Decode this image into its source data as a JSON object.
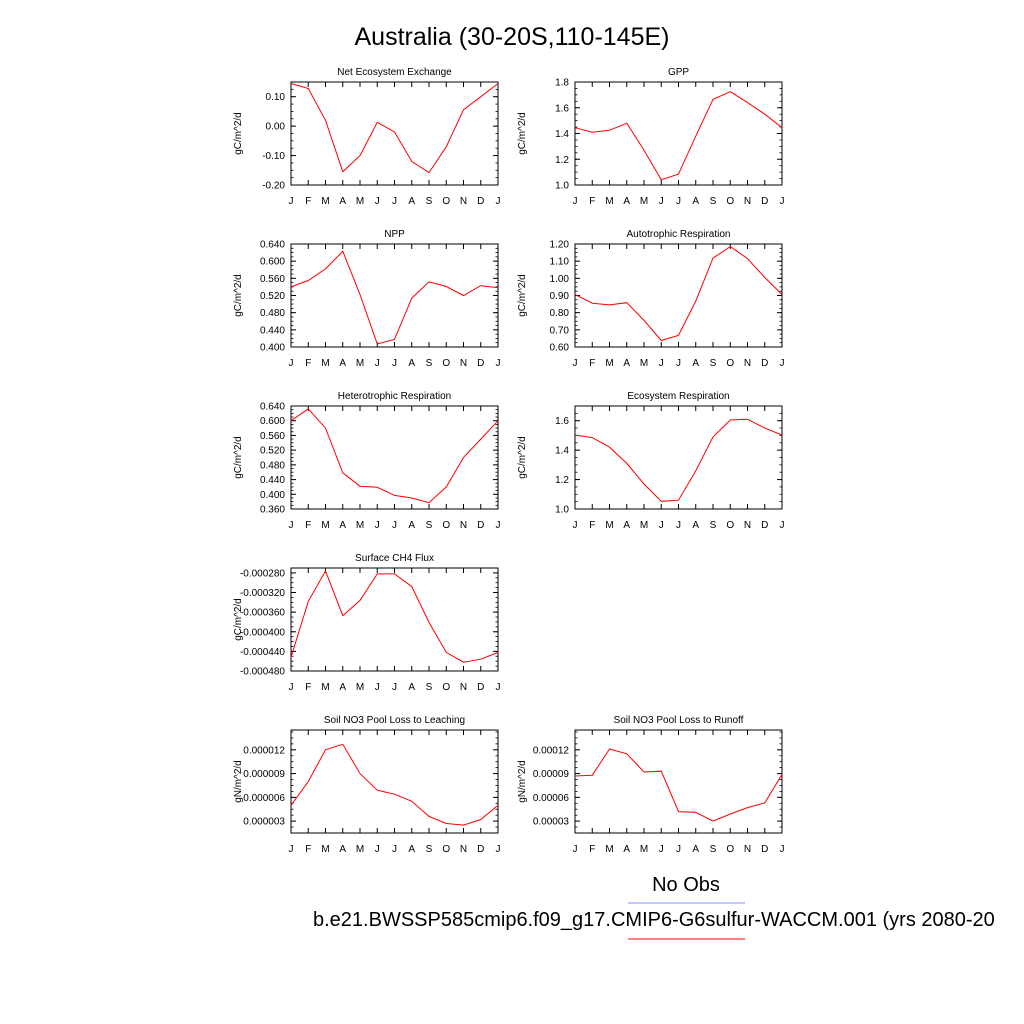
{
  "figure": {
    "title": "Australia (30-20S,110-145E)",
    "legend": {
      "obs_label": "No Obs",
      "obs_color": "#8888ff",
      "case_label": "b.e21.BWSSP585cmip6.f09_g17.CMIP6-G6sulfur-WACCM.001 (yrs 2080-20",
      "case_color": "#ff0000"
    }
  },
  "chart_data": [
    {
      "type": "line",
      "title": "Net Ecosystem Exchange",
      "ylabel": "gC/m^2/d",
      "xlabel": "",
      "categories": [
        "J",
        "F",
        "M",
        "A",
        "M",
        "J",
        "J",
        "A",
        "S",
        "O",
        "N",
        "D",
        "J"
      ],
      "series": [
        {
          "color": "#ff0000",
          "values": [
            0.145,
            0.128,
            0.02,
            -0.155,
            -0.1,
            0.013,
            -0.02,
            -0.12,
            -0.158,
            -0.07,
            0.056,
            0.1,
            0.145
          ]
        }
      ],
      "ylim": [
        -0.2,
        0.15
      ],
      "yticks": [
        -0.2,
        -0.1,
        0.0,
        0.1
      ],
      "yticklabels": [
        "-0.20",
        "-0.10",
        "0.00",
        "0.10"
      ],
      "grid": false
    },
    {
      "type": "line",
      "title": "GPP",
      "ylabel": "gC/m^2/d",
      "xlabel": "",
      "categories": [
        "J",
        "F",
        "M",
        "A",
        "M",
        "J",
        "J",
        "A",
        "S",
        "O",
        "N",
        "D",
        "J"
      ],
      "series": [
        {
          "color": "#ff0000",
          "values": [
            1.445,
            1.41,
            1.425,
            1.48,
            1.27,
            1.04,
            1.085,
            1.38,
            1.665,
            1.725,
            1.64,
            1.55,
            1.445
          ]
        }
      ],
      "ylim": [
        1.0,
        1.8
      ],
      "yticks": [
        1.0,
        1.2,
        1.4,
        1.6,
        1.8
      ],
      "yticklabels": [
        "1.0",
        "1.2",
        "1.4",
        "1.6",
        "1.8"
      ],
      "grid": false
    },
    {
      "type": "line",
      "title": "NPP",
      "ylabel": "gC/m^2/d",
      "xlabel": "",
      "categories": [
        "J",
        "F",
        "M",
        "A",
        "M",
        "J",
        "J",
        "A",
        "S",
        "O",
        "N",
        "D",
        "J"
      ],
      "series": [
        {
          "color": "#ff0000",
          "values": [
            0.54,
            0.555,
            0.582,
            0.623,
            0.522,
            0.407,
            0.418,
            0.514,
            0.552,
            0.541,
            0.52,
            0.543,
            0.538
          ]
        }
      ],
      "ylim": [
        0.4,
        0.64
      ],
      "yticks": [
        0.4,
        0.44,
        0.48,
        0.52,
        0.56,
        0.6,
        0.64
      ],
      "yticklabels": [
        "0.400",
        "0.440",
        "0.480",
        "0.520",
        "0.560",
        "0.600",
        "0.640"
      ],
      "grid": false
    },
    {
      "type": "line",
      "title": "Autotrophic Respiration",
      "ylabel": "gC/m^2/d",
      "xlabel": "",
      "categories": [
        "J",
        "F",
        "M",
        "A",
        "M",
        "J",
        "J",
        "A",
        "S",
        "O",
        "N",
        "D",
        "J"
      ],
      "series": [
        {
          "color": "#ff0000",
          "values": [
            0.905,
            0.855,
            0.845,
            0.858,
            0.755,
            0.638,
            0.668,
            0.868,
            1.118,
            1.185,
            1.115,
            1.005,
            0.905
          ]
        }
      ],
      "ylim": [
        0.6,
        1.2
      ],
      "yticks": [
        0.6,
        0.7,
        0.8,
        0.9,
        1.0,
        1.1,
        1.2
      ],
      "yticklabels": [
        "0.60",
        "0.70",
        "0.80",
        "0.90",
        "1.00",
        "1.10",
        "1.20"
      ],
      "grid": false
    },
    {
      "type": "line",
      "title": "Heterotrophic Respiration",
      "ylabel": "gC/m^2/d",
      "xlabel": "",
      "categories": [
        "J",
        "F",
        "M",
        "A",
        "M",
        "J",
        "J",
        "A",
        "S",
        "O",
        "N",
        "D",
        "J"
      ],
      "series": [
        {
          "color": "#ff0000",
          "values": [
            0.6,
            0.632,
            0.58,
            0.458,
            0.422,
            0.419,
            0.397,
            0.39,
            0.377,
            0.42,
            0.5,
            0.55,
            0.6
          ]
        }
      ],
      "ylim": [
        0.36,
        0.64
      ],
      "yticks": [
        0.36,
        0.4,
        0.44,
        0.48,
        0.52,
        0.56,
        0.6,
        0.64
      ],
      "yticklabels": [
        "0.360",
        "0.400",
        "0.440",
        "0.480",
        "0.520",
        "0.560",
        "0.600",
        "0.640"
      ],
      "grid": false
    },
    {
      "type": "line",
      "title": "Ecosystem Respiration",
      "ylabel": "gC/m^2/d",
      "xlabel": "",
      "categories": [
        "J",
        "F",
        "M",
        "A",
        "M",
        "J",
        "J",
        "A",
        "S",
        "O",
        "N",
        "D",
        "J"
      ],
      "series": [
        {
          "color": "#ff0000",
          "values": [
            1.503,
            1.485,
            1.42,
            1.31,
            1.17,
            1.052,
            1.06,
            1.26,
            1.49,
            1.605,
            1.61,
            1.55,
            1.503
          ]
        }
      ],
      "ylim": [
        1.0,
        1.7
      ],
      "yticks": [
        1.0,
        1.2,
        1.4,
        1.6
      ],
      "yticklabels": [
        "1.0",
        "1.2",
        "1.4",
        "1.6"
      ],
      "grid": false
    },
    {
      "type": "line",
      "title": "Surface CH4 Flux",
      "ylabel": "gC/m^2/d",
      "xlabel": "",
      "categories": [
        "J",
        "F",
        "M",
        "A",
        "M",
        "J",
        "J",
        "A",
        "S",
        "O",
        "N",
        "D",
        "J"
      ],
      "series": [
        {
          "color": "#ff0000",
          "values": [
            -0.000452,
            -0.000338,
            -0.000276,
            -0.000367,
            -0.000336,
            -0.000282,
            -0.000282,
            -0.000308,
            -0.000381,
            -0.000442,
            -0.000462,
            -0.000456,
            -0.000442
          ]
        }
      ],
      "ylim": [
        -0.00048,
        -0.00027
      ],
      "yticks": [
        -0.00048,
        -0.00044,
        -0.0004,
        -0.00036,
        -0.00032,
        -0.00028
      ],
      "yticklabels": [
        "-0.000480",
        "-0.000440",
        "-0.000400",
        "-0.000360",
        "-0.000320",
        "-0.000280"
      ],
      "grid": false
    },
    {
      "type": "line",
      "title": "Soil NO3 Pool Loss to Leaching",
      "ylabel": "gN/m^2/d",
      "xlabel": "",
      "categories": [
        "J",
        "F",
        "M",
        "A",
        "M",
        "J",
        "J",
        "A",
        "S",
        "O",
        "N",
        "D",
        "J"
      ],
      "series": [
        {
          "color": "#ff0000",
          "values": [
            5e-06,
            8e-06,
            1.2e-05,
            1.27e-05,
            9e-06,
            6.9e-06,
            6.4e-06,
            5.5e-06,
            3.6e-06,
            2.7e-06,
            2.5e-06,
            3.2e-06,
            5e-06
          ]
        }
      ],
      "ylim": [
        1.5e-06,
        1.45e-05
      ],
      "yticks": [
        3e-06,
        6e-06,
        9e-06,
        1.2e-05
      ],
      "yticklabels": [
        "0.000003",
        "0.000006",
        "0.000009",
        "0.000012"
      ],
      "grid": false
    },
    {
      "type": "line",
      "title": "Soil NO3 Pool Loss to Runoff",
      "ylabel": "gN/m^2/d",
      "xlabel": "",
      "categories": [
        "J",
        "F",
        "M",
        "A",
        "M",
        "J",
        "J",
        "A",
        "S",
        "O",
        "N",
        "D",
        "J"
      ],
      "series": [
        {
          "color": "#ff0000",
          "values": [
            8.7e-05,
            8.8e-05,
            0.000121,
            0.000115,
            9.2e-05,
            9.3e-05,
            4.2e-05,
            4.1e-05,
            3e-05,
            3.9e-05,
            4.7e-05,
            5.3e-05,
            8.9e-05
          ]
        }
      ],
      "ylim": [
        1.5e-05,
        0.000145
      ],
      "yticks": [
        3e-05,
        6e-05,
        9e-05,
        0.00012
      ],
      "yticklabels": [
        "0.00003",
        "0.00006",
        "0.00009",
        "0.00012"
      ],
      "grid": false
    }
  ]
}
